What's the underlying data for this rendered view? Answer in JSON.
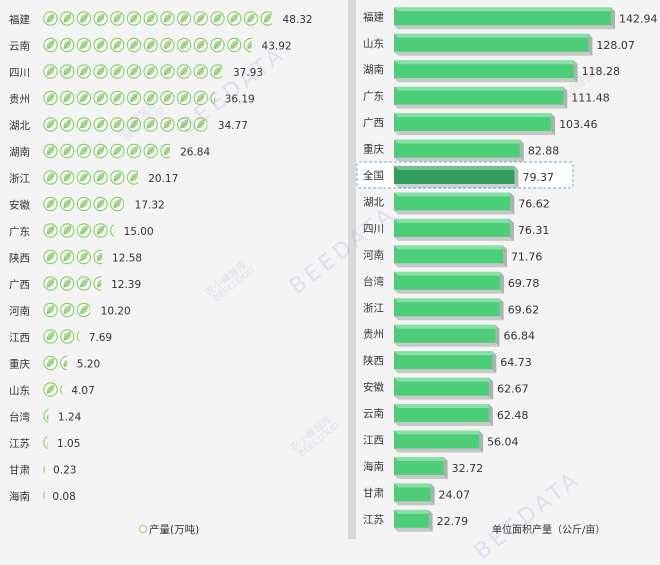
{
  "colors": {
    "leaf_stroke": "#8fcf73",
    "leaf_fill": "#ffffff",
    "bar_green": "#4ccd78",
    "bar_highlight": "#2e9e5c",
    "text": "#333333",
    "highlight_border": "#7aa7e0"
  },
  "chart_data": [
    {
      "type": "bar",
      "orientation": "horizontal",
      "style": "pictograph-leaf",
      "categories": [
        "福建",
        "云南",
        "四川",
        "贵州",
        "湖北",
        "湖南",
        "浙江",
        "安徽",
        "广东",
        "陕西",
        "广西",
        "河南",
        "江西",
        "重庆",
        "山东",
        "台湾",
        "江苏",
        "甘肃",
        "海南"
      ],
      "values": [
        48.32,
        43.92,
        37.93,
        36.19,
        34.77,
        26.84,
        20.17,
        17.32,
        15.0,
        12.58,
        12.39,
        10.2,
        7.69,
        5.2,
        4.07,
        1.24,
        1.05,
        0.23,
        0.08
      ],
      "value_labels": [
        "48.32",
        "43.92",
        "37.93",
        "36.19",
        "34.77",
        "26.84",
        "20.17",
        "17.32",
        "15.00",
        "12.58",
        "12.39",
        "10.20",
        "7.69",
        "5.20",
        "4.07",
        "1.24",
        "1.05",
        "0.23",
        "0.08"
      ],
      "xlabel": "产量(万吨)",
      "unit_per_icon": 3.5
    },
    {
      "type": "bar",
      "orientation": "horizontal",
      "style": "3d",
      "categories": [
        "福建",
        "山东",
        "湖南",
        "广东",
        "广西",
        "重庆",
        "全国",
        "湖北",
        "四川",
        "河南",
        "台湾",
        "浙江",
        "贵州",
        "陕西",
        "安徽",
        "云南",
        "江西",
        "海南",
        "甘肃",
        "江苏"
      ],
      "values": [
        142.94,
        128.07,
        118.28,
        111.48,
        103.46,
        82.88,
        79.37,
        76.62,
        76.31,
        71.76,
        69.78,
        69.62,
        66.84,
        64.73,
        62.67,
        62.48,
        56.04,
        32.72,
        24.07,
        22.79
      ],
      "value_labels": [
        "142.94",
        "128.07",
        "118.28",
        "111.48",
        "103.46",
        "82.88",
        "79.37",
        "76.62",
        "76.31",
        "71.76",
        "69.78",
        "69.62",
        "66.84",
        "64.73",
        "62.67",
        "62.48",
        "56.04",
        "32.72",
        "24.07",
        "22.79"
      ],
      "highlight": "全国",
      "xlabel": "单位面积产量（公斤/亩）"
    }
  ],
  "watermark": {
    "cn": "农小蜂智库",
    "en": "BEECLOUD",
    "big": "BEEDATA"
  }
}
